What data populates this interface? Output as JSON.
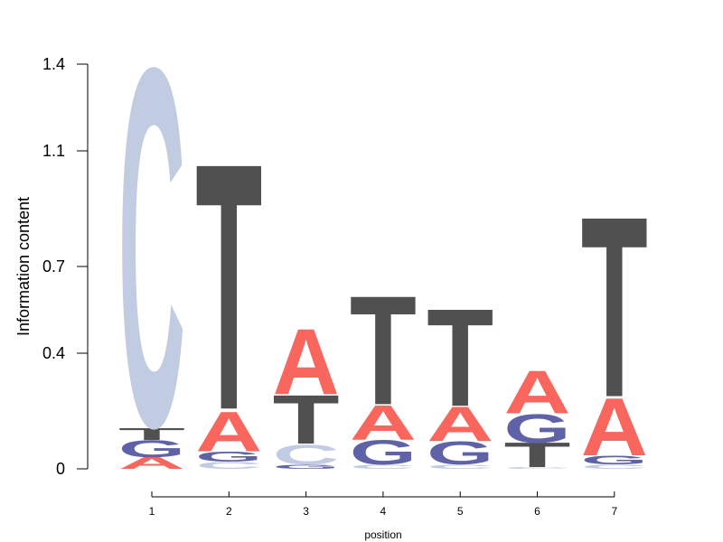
{
  "chart_data": {
    "type": "sequence-logo",
    "xlabel": "position",
    "ylabel": "Information content",
    "yticks": [
      "0",
      "0.4",
      "0.7",
      "1.1",
      "1.4"
    ],
    "ytick_values": [
      0,
      0.4,
      0.7,
      1.1,
      1.4
    ],
    "ylim": [
      0,
      1.4
    ],
    "positions": [
      "1",
      "2",
      "3",
      "4",
      "5",
      "6",
      "7"
    ],
    "colors": {
      "A": "#f8665e",
      "C": "#c1cbe2",
      "G": "#6062a8",
      "T": "#505050"
    },
    "stacks": [
      {
        "position": "1",
        "letters": [
          {
            "char": "A",
            "value": 0.04
          },
          {
            "char": "G",
            "value": 0.06
          },
          {
            "char": "T",
            "value": 0.04
          },
          {
            "char": "C",
            "value": 1.25
          }
        ]
      },
      {
        "position": "2",
        "letters": [
          {
            "char": "C",
            "value": 0.025
          },
          {
            "char": "G",
            "value": 0.035
          },
          {
            "char": "A",
            "value": 0.14
          },
          {
            "char": "T",
            "value": 0.86
          }
        ]
      },
      {
        "position": "3",
        "letters": [
          {
            "char": "G",
            "value": 0.015
          },
          {
            "char": "C",
            "value": 0.07
          },
          {
            "char": "T",
            "value": 0.17
          },
          {
            "char": "A",
            "value": 0.23
          }
        ]
      },
      {
        "position": "4",
        "letters": [
          {
            "char": "C",
            "value": 0.015
          },
          {
            "char": "G",
            "value": 0.085
          },
          {
            "char": "A",
            "value": 0.12
          },
          {
            "char": "T",
            "value": 0.38
          }
        ]
      },
      {
        "position": "5",
        "letters": [
          {
            "char": "C",
            "value": 0.015
          },
          {
            "char": "G",
            "value": 0.08
          },
          {
            "char": "A",
            "value": 0.12
          },
          {
            "char": "T",
            "value": 0.34
          }
        ]
      },
      {
        "position": "6",
        "letters": [
          {
            "char": "C",
            "value": 0.005
          },
          {
            "char": "T",
            "value": 0.085
          },
          {
            "char": "G",
            "value": 0.1
          },
          {
            "char": "A",
            "value": 0.15
          }
        ]
      },
      {
        "position": "7",
        "letters": [
          {
            "char": "C",
            "value": 0.015
          },
          {
            "char": "G",
            "value": 0.03
          },
          {
            "char": "A",
            "value": 0.2
          },
          {
            "char": "T",
            "value": 0.63
          }
        ]
      }
    ]
  }
}
